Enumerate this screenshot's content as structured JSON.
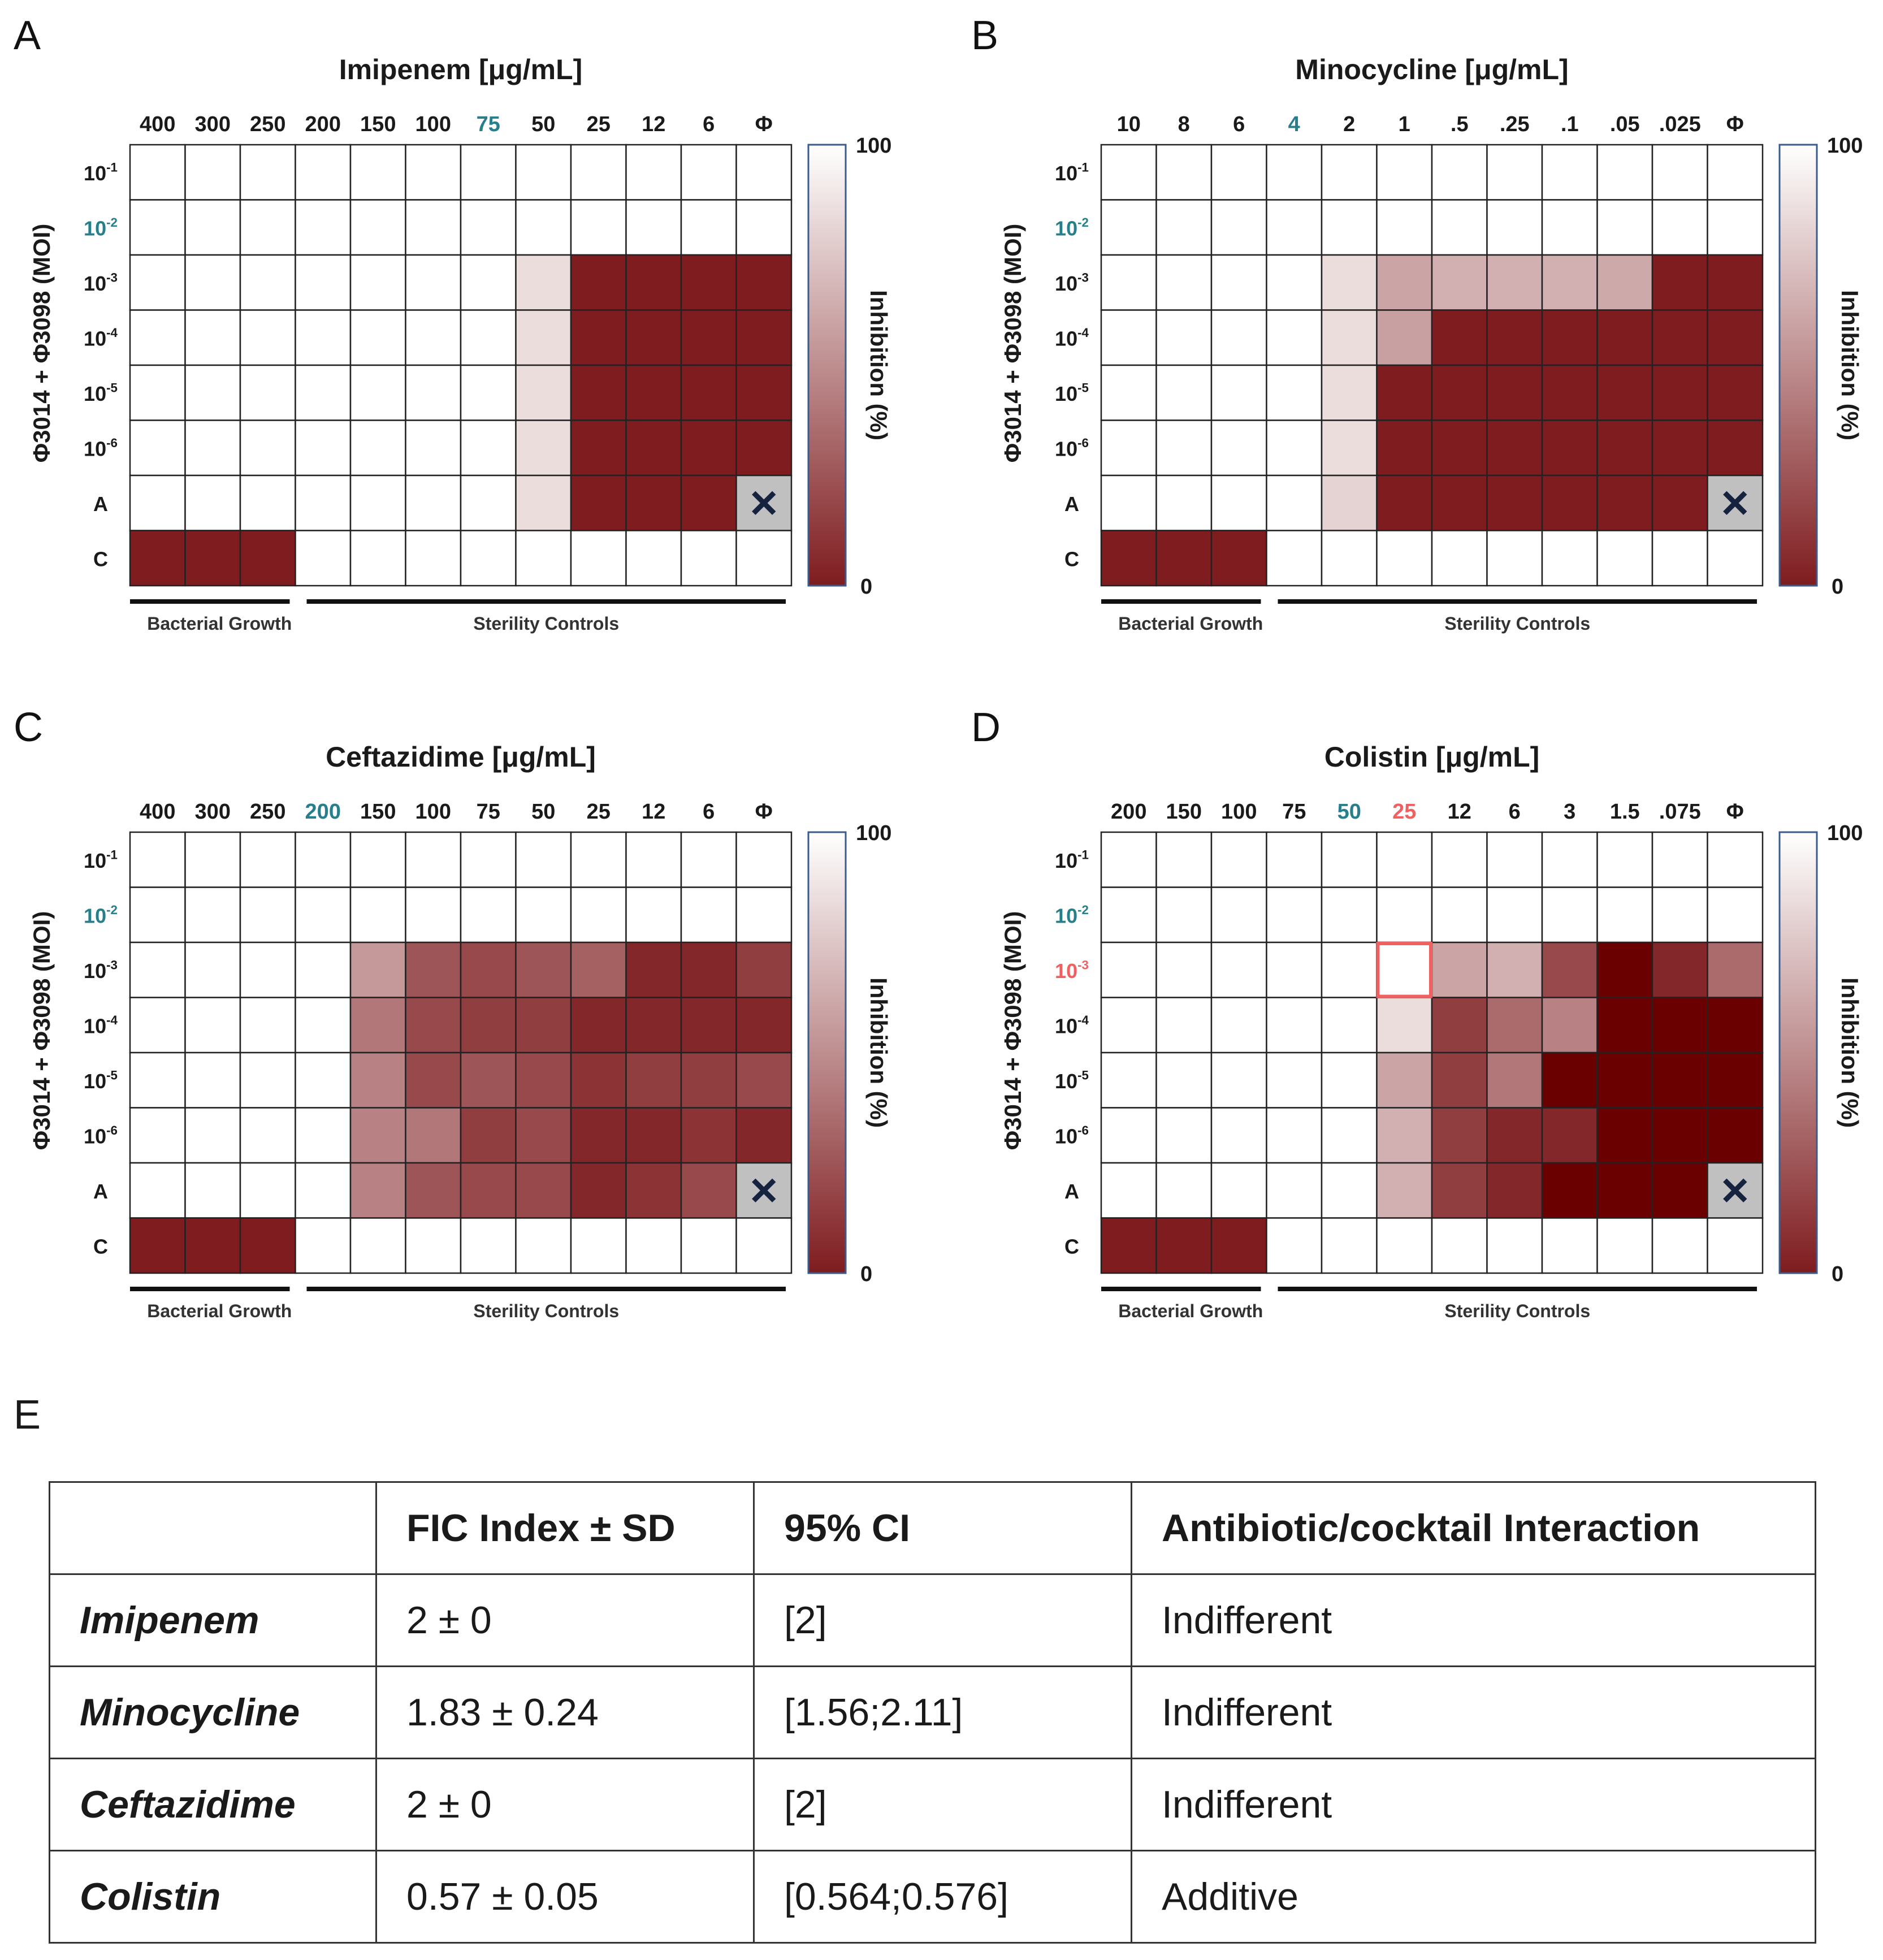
{
  "colors": {
    "grow": "#7e1c1f",
    "strong": "#6b0000",
    "none": "#ffffff",
    "phage_control_cell": "#c0c0c0",
    "highlight_tick": "#267f8a",
    "highlight_red": "#f06060",
    "x_mark": "#16233e"
  },
  "row_labels": [
    "10-1",
    "10-2",
    "10-3",
    "10-4",
    "10-5",
    "10-6",
    "A",
    "C"
  ],
  "y_axis_label": "Φ3014 + Φ3098 (MOI)",
  "colorbar": {
    "label": "Inhibition (%)",
    "max_label": "100",
    "min_label": "0"
  },
  "bottom_labels": {
    "bacterial_growth": "Bacterial Growth",
    "sterility_controls": "Sterility Controls"
  },
  "chart_data": [
    {
      "type": "heatmap",
      "panel": "A",
      "title": "Imipenem [μg/mL]",
      "columns": [
        "400",
        "300",
        "250",
        "200",
        "150",
        "100",
        "75",
        "50",
        "25",
        "12",
        "6",
        "Φ"
      ],
      "highlight_col": 6,
      "highlight_row": 1,
      "inhibition": [
        [
          100,
          100,
          100,
          100,
          100,
          100,
          100,
          100,
          100,
          100,
          100,
          100
        ],
        [
          100,
          100,
          100,
          100,
          100,
          100,
          100,
          100,
          100,
          100,
          100,
          100
        ],
        [
          100,
          100,
          100,
          100,
          100,
          100,
          100,
          85,
          0,
          0,
          0,
          0
        ],
        [
          100,
          100,
          100,
          100,
          100,
          100,
          100,
          85,
          0,
          0,
          0,
          0
        ],
        [
          100,
          100,
          100,
          100,
          100,
          100,
          100,
          85,
          0,
          0,
          0,
          0
        ],
        [
          100,
          100,
          100,
          100,
          100,
          100,
          100,
          85,
          0,
          0,
          0,
          0
        ],
        [
          100,
          100,
          100,
          100,
          100,
          100,
          100,
          85,
          0,
          0,
          0,
          null
        ],
        [
          0,
          0,
          0,
          100,
          100,
          100,
          100,
          100,
          100,
          100,
          100,
          100
        ]
      ]
    },
    {
      "type": "heatmap",
      "panel": "B",
      "title": "Minocycline [μg/mL]",
      "columns": [
        "10",
        "8",
        "6",
        "4",
        "2",
        "1",
        ".5",
        ".25",
        ".1",
        ".05",
        ".025",
        "Φ"
      ],
      "highlight_col": 3,
      "highlight_row": 1,
      "inhibition": [
        [
          100,
          100,
          100,
          100,
          100,
          100,
          100,
          100,
          100,
          100,
          100,
          100
        ],
        [
          100,
          100,
          100,
          100,
          100,
          100,
          100,
          100,
          100,
          100,
          100,
          100
        ],
        [
          100,
          100,
          100,
          100,
          85,
          60,
          65,
          65,
          65,
          62,
          0,
          0
        ],
        [
          100,
          100,
          100,
          100,
          85,
          58,
          0,
          0,
          0,
          0,
          0,
          0
        ],
        [
          100,
          100,
          100,
          100,
          85,
          0,
          0,
          0,
          0,
          0,
          0,
          0
        ],
        [
          100,
          100,
          100,
          100,
          85,
          0,
          0,
          0,
          0,
          0,
          0,
          0
        ],
        [
          100,
          100,
          100,
          100,
          80,
          0,
          0,
          0,
          0,
          0,
          0,
          null
        ],
        [
          0,
          0,
          0,
          100,
          100,
          100,
          100,
          100,
          100,
          100,
          100,
          100
        ]
      ]
    },
    {
      "type": "heatmap",
      "panel": "C",
      "title": "Ceftazidime [μg/mL]",
      "columns": [
        "400",
        "300",
        "250",
        "200",
        "150",
        "100",
        "75",
        "50",
        "25",
        "12",
        "6",
        "Φ"
      ],
      "highlight_col": 3,
      "highlight_row": 1,
      "inhibition": [
        [
          100,
          100,
          100,
          100,
          100,
          100,
          100,
          100,
          100,
          100,
          100,
          100
        ],
        [
          100,
          100,
          100,
          100,
          100,
          100,
          100,
          100,
          100,
          100,
          100,
          100
        ],
        [
          100,
          100,
          100,
          100,
          55,
          25,
          20,
          25,
          30,
          5,
          5,
          15
        ],
        [
          100,
          100,
          100,
          100,
          40,
          20,
          15,
          15,
          5,
          5,
          5,
          5
        ],
        [
          100,
          100,
          100,
          100,
          45,
          20,
          25,
          20,
          10,
          15,
          15,
          20
        ],
        [
          100,
          100,
          100,
          100,
          45,
          40,
          15,
          20,
          5,
          5,
          10,
          5
        ],
        [
          100,
          100,
          100,
          100,
          45,
          25,
          20,
          20,
          5,
          10,
          20,
          null
        ],
        [
          0,
          0,
          0,
          100,
          100,
          100,
          100,
          100,
          100,
          100,
          100,
          100
        ]
      ]
    },
    {
      "type": "heatmap",
      "panel": "D",
      "title": "Colistin [μg/mL]",
      "columns": [
        "200",
        "150",
        "100",
        "75",
        "50",
        "25",
        "12",
        "6",
        "3",
        "1.5",
        ".075",
        "Φ"
      ],
      "highlight_col": 4,
      "highlight_red_col": 5,
      "highlight_row": 1,
      "highlight_red_row": 2,
      "inhibition": [
        [
          100,
          100,
          100,
          100,
          100,
          100,
          100,
          100,
          100,
          100,
          100,
          100
        ],
        [
          100,
          100,
          100,
          100,
          100,
          100,
          100,
          100,
          100,
          100,
          100,
          100
        ],
        [
          100,
          100,
          100,
          100,
          100,
          100,
          60,
          65,
          20,
          -15,
          5,
          35
        ],
        [
          100,
          100,
          100,
          100,
          100,
          85,
          15,
          35,
          45,
          -15,
          -15,
          -15
        ],
        [
          100,
          100,
          100,
          100,
          100,
          60,
          15,
          40,
          -15,
          -15,
          -15,
          -15
        ],
        [
          100,
          100,
          100,
          100,
          100,
          65,
          15,
          5,
          5,
          -15,
          -15,
          -15
        ],
        [
          100,
          100,
          100,
          100,
          100,
          65,
          15,
          5,
          -15,
          -15,
          -15,
          null
        ],
        [
          0,
          0,
          0,
          100,
          100,
          100,
          100,
          100,
          100,
          100,
          100,
          100
        ]
      ]
    }
  ],
  "table": {
    "letter": "E",
    "headers": [
      "",
      "FIC Index ± SD",
      "95% CI",
      "Antibiotic/cocktail Interaction"
    ],
    "rows": [
      [
        "Imipenem",
        "2 ± 0",
        "[2]",
        "Indifferent"
      ],
      [
        "Minocycline",
        "1.83 ± 0.24",
        "[1.56;2.11]",
        "Indifferent"
      ],
      [
        "Ceftazidime",
        "2 ± 0",
        "[2]",
        "Indifferent"
      ],
      [
        "Colistin",
        "0.57 ± 0.05",
        "[0.564;0.576]",
        "Additive"
      ]
    ]
  }
}
